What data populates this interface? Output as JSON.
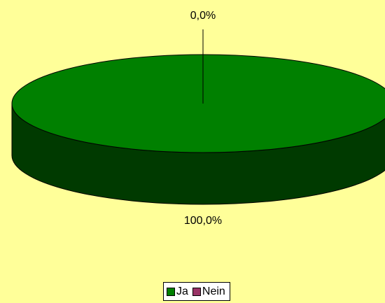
{
  "chart_data": {
    "type": "pie",
    "variant": "3d",
    "categories": [
      "Ja",
      "Nein"
    ],
    "values": [
      100.0,
      0.0
    ],
    "data_labels": [
      "100,0%",
      "0,0%"
    ],
    "colors": [
      "#008000",
      "#993366"
    ],
    "title": "",
    "legend_position": "bottom",
    "background": "#ffff99"
  }
}
